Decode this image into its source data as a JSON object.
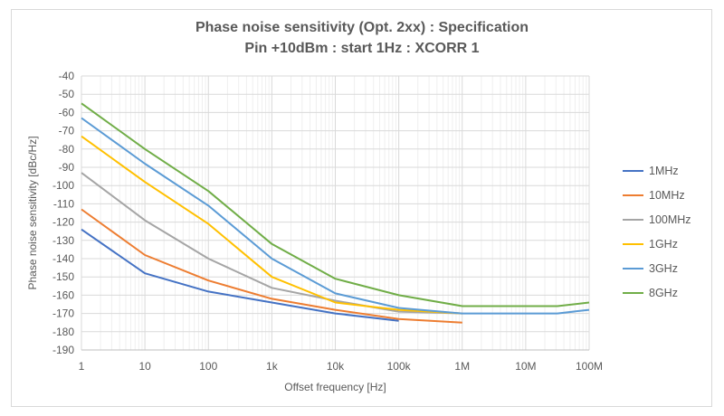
{
  "chart_data": {
    "type": "line",
    "title": "Phase noise sensitivity (Opt. 2xx) : Specification",
    "subtitle": "Pin +10dBm : start 1Hz : XCORR 1",
    "xlabel": "Offset frequency [Hz]",
    "ylabel": "Phase noise sensitivity [dBc/Hz]",
    "xscale": "log",
    "xlim": [
      1,
      100000000
    ],
    "ylim": [
      -190,
      -40
    ],
    "grid": true,
    "legend_position": "right",
    "x_ticks": [
      {
        "value": 1,
        "label": "1"
      },
      {
        "value": 10,
        "label": "10"
      },
      {
        "value": 100,
        "label": "100"
      },
      {
        "value": 1000,
        "label": "1k"
      },
      {
        "value": 10000,
        "label": "10k"
      },
      {
        "value": 100000,
        "label": "100k"
      },
      {
        "value": 1000000,
        "label": "1M"
      },
      {
        "value": 10000000,
        "label": "10M"
      },
      {
        "value": 100000000,
        "label": "100M"
      }
    ],
    "y_ticks": [
      -40,
      -50,
      -60,
      -70,
      -80,
      -90,
      -100,
      -110,
      -120,
      -130,
      -140,
      -150,
      -160,
      -170,
      -180,
      -190
    ],
    "series": [
      {
        "name": "1MHz",
        "color": "#4472c4",
        "points": [
          [
            1,
            -124
          ],
          [
            10,
            -148
          ],
          [
            100,
            -158
          ],
          [
            1000,
            -164
          ],
          [
            10000,
            -170
          ],
          [
            100000,
            -174
          ]
        ]
      },
      {
        "name": "10MHz",
        "color": "#ed7d31",
        "points": [
          [
            1,
            -113
          ],
          [
            10,
            -138
          ],
          [
            100,
            -152
          ],
          [
            1000,
            -162
          ],
          [
            10000,
            -168
          ],
          [
            100000,
            -173
          ],
          [
            1000000,
            -175
          ]
        ]
      },
      {
        "name": "100MHz",
        "color": "#a5a5a5",
        "points": [
          [
            1,
            -93
          ],
          [
            10,
            -119
          ],
          [
            100,
            -140
          ],
          [
            1000,
            -156
          ],
          [
            10000,
            -163
          ],
          [
            100000,
            -169
          ],
          [
            1000000,
            -170
          ]
        ]
      },
      {
        "name": "1GHz",
        "color": "#ffc000",
        "points": [
          [
            1,
            -73
          ],
          [
            10,
            -98
          ],
          [
            100,
            -121
          ],
          [
            1000,
            -150
          ],
          [
            10000,
            -164
          ],
          [
            100000,
            -168
          ],
          [
            1000000,
            -170
          ]
        ]
      },
      {
        "name": "3GHz",
        "color": "#5b9bd5",
        "points": [
          [
            1,
            -63
          ],
          [
            10,
            -88
          ],
          [
            100,
            -111
          ],
          [
            1000,
            -140
          ],
          [
            10000,
            -159
          ],
          [
            100000,
            -167
          ],
          [
            1000000,
            -170
          ],
          [
            10000000,
            -170
          ],
          [
            31600000,
            -170
          ],
          [
            100000000,
            -168
          ]
        ]
      },
      {
        "name": "8GHz",
        "color": "#70ad47",
        "points": [
          [
            1,
            -55
          ],
          [
            10,
            -80
          ],
          [
            100,
            -103
          ],
          [
            1000,
            -132
          ],
          [
            10000,
            -151
          ],
          [
            100000,
            -160
          ],
          [
            1000000,
            -166
          ],
          [
            10000000,
            -166
          ],
          [
            31600000,
            -166
          ],
          [
            100000000,
            -164
          ]
        ]
      }
    ]
  }
}
